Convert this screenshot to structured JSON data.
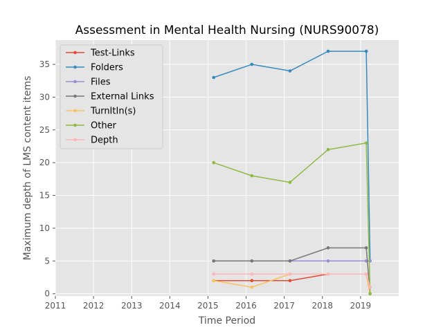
{
  "chart_data": {
    "type": "line",
    "title": "Assessment in Mental Health Nursing (NURS90078)",
    "xlabel": "Time Period",
    "ylabel": "Maximum depth of LMS content items",
    "xlim": [
      2011.0,
      2020.0
    ],
    "ylim": [
      -0.35,
      38.7
    ],
    "xticks": [
      2011,
      2012,
      2013,
      2014,
      2015,
      2016,
      2017,
      2018,
      2019
    ],
    "xtick_labels": [
      "2011",
      "2012",
      "2013",
      "2014",
      "2015",
      "2016",
      "2017",
      "2018",
      "2019"
    ],
    "yticks": [
      0,
      5,
      10,
      15,
      20,
      25,
      30,
      35
    ],
    "ytick_labels": [
      "0",
      "5",
      "10",
      "15",
      "20",
      "25",
      "30",
      "35"
    ],
    "grid": true,
    "legend_position": "top-left",
    "x": [
      2015.15,
      2016.15,
      2017.15,
      2018.15,
      2019.15,
      2019.25
    ],
    "series": [
      {
        "name": "Test-Links",
        "color": "#E24A33",
        "values": [
          2,
          2,
          2,
          3,
          3,
          0
        ]
      },
      {
        "name": "Folders",
        "color": "#348ABD",
        "values": [
          33,
          35,
          34,
          37,
          37,
          5
        ]
      },
      {
        "name": "Files",
        "color": "#988ED5",
        "values": [
          5,
          5,
          5,
          5,
          5,
          5
        ]
      },
      {
        "name": "External Links",
        "color": "#777777",
        "values": [
          5,
          5,
          5,
          7,
          7,
          0
        ]
      },
      {
        "name": "TurnItIn(s)",
        "color": "#FBC15E",
        "values": [
          2,
          1,
          3,
          3,
          3,
          0
        ]
      },
      {
        "name": "Other",
        "color": "#8EBA42",
        "values": [
          20,
          18,
          17,
          22,
          23,
          0
        ]
      },
      {
        "name": "Depth",
        "color": "#FFB5B8",
        "values": [
          3,
          3,
          3,
          3,
          3,
          1
        ]
      }
    ]
  }
}
